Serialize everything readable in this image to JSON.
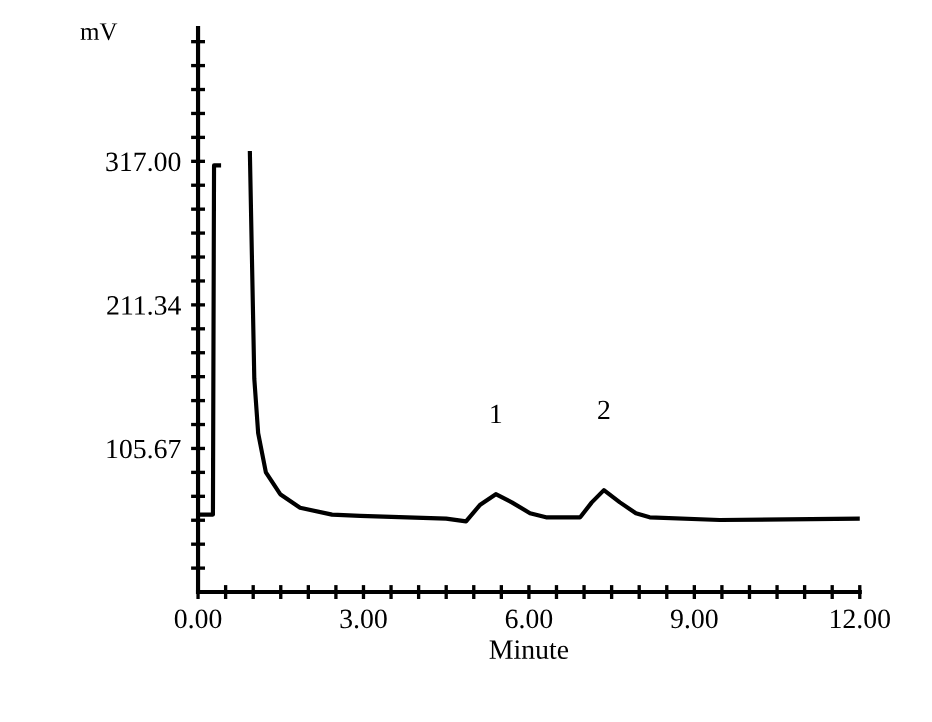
{
  "chart_data": {
    "type": "line",
    "xlabel": "Minute",
    "ylabel": "mV",
    "x": [
      0,
      0.27,
      0.29,
      0.38,
      0.4,
      0.58,
      0.6,
      0.66,
      0.68,
      0.92,
      0.94,
      1.02,
      1.09,
      1.23,
      1.49,
      1.85,
      2.43,
      2.94,
      4.5,
      4.86,
      5.11,
      5.4,
      5.69,
      6.02,
      6.31,
      6.93,
      7.14,
      7.36,
      7.65,
      7.94,
      8.19,
      9.46,
      12.0
    ],
    "series": [
      {
        "color": "#000000",
        "values": [
          57,
          57,
          314,
          314,
          null,
          null,
          null,
          null,
          null,
          null,
          323,
          157,
          117,
          88,
          72,
          62,
          57,
          56,
          54,
          52,
          64,
          72,
          66,
          58,
          55,
          55,
          66,
          75,
          66,
          58,
          55,
          53,
          54
        ]
      }
    ],
    "annotations": [
      {
        "text": "1",
        "x": 5.4,
        "y": 72
      },
      {
        "text": "2",
        "x": 7.36,
        "y": 75
      }
    ],
    "xlim": [
      0,
      12
    ],
    "ylim": [
      0,
      415
    ],
    "xticks": [
      {
        "value": 0,
        "label": "0.00"
      },
      {
        "value": 0.5,
        "label": null
      },
      {
        "value": 1,
        "label": null
      },
      {
        "value": 1.5,
        "label": null
      },
      {
        "value": 2,
        "label": null
      },
      {
        "value": 2.5,
        "label": null
      },
      {
        "value": 3,
        "label": "3.00"
      },
      {
        "value": 3.5,
        "label": null
      },
      {
        "value": 4,
        "label": null
      },
      {
        "value": 4.5,
        "label": null
      },
      {
        "value": 5,
        "label": null
      },
      {
        "value": 5.5,
        "label": null
      },
      {
        "value": 6,
        "label": "6.00"
      },
      {
        "value": 6.5,
        "label": null
      },
      {
        "value": 7,
        "label": null
      },
      {
        "value": 7.5,
        "label": null
      },
      {
        "value": 8,
        "label": null
      },
      {
        "value": 8.5,
        "label": null
      },
      {
        "value": 9,
        "label": "9.00"
      },
      {
        "value": 9.5,
        "label": null
      },
      {
        "value": 10,
        "label": null
      },
      {
        "value": 10.5,
        "label": null
      },
      {
        "value": 11,
        "label": null
      },
      {
        "value": 11.5,
        "label": null
      },
      {
        "value": 12,
        "label": "12.00"
      }
    ],
    "yticks": [
      {
        "value": 17.61,
        "label": null
      },
      {
        "value": 35.22,
        "label": null
      },
      {
        "value": 52.84,
        "label": null
      },
      {
        "value": 70.45,
        "label": null
      },
      {
        "value": 88.06,
        "label": null
      },
      {
        "value": 105.67,
        "label": "105.67"
      },
      {
        "value": 123.28,
        "label": null
      },
      {
        "value": 140.89,
        "label": null
      },
      {
        "value": 158.51,
        "label": null
      },
      {
        "value": 176.12,
        "label": null
      },
      {
        "value": 193.73,
        "label": null
      },
      {
        "value": 211.34,
        "label": "211.34"
      },
      {
        "value": 228.95,
        "label": null
      },
      {
        "value": 246.56,
        "label": null
      },
      {
        "value": 264.18,
        "label": null
      },
      {
        "value": 281.79,
        "label": null
      },
      {
        "value": 299.4,
        "label": null
      },
      {
        "value": 317.0,
        "label": "317.00"
      },
      {
        "value": 334.61,
        "label": null
      },
      {
        "value": 352.22,
        "label": null
      },
      {
        "value": 369.84,
        "label": null
      },
      {
        "value": 387.45,
        "label": null
      },
      {
        "value": 405.06,
        "label": null
      }
    ],
    "grid": false,
    "legend": false
  }
}
